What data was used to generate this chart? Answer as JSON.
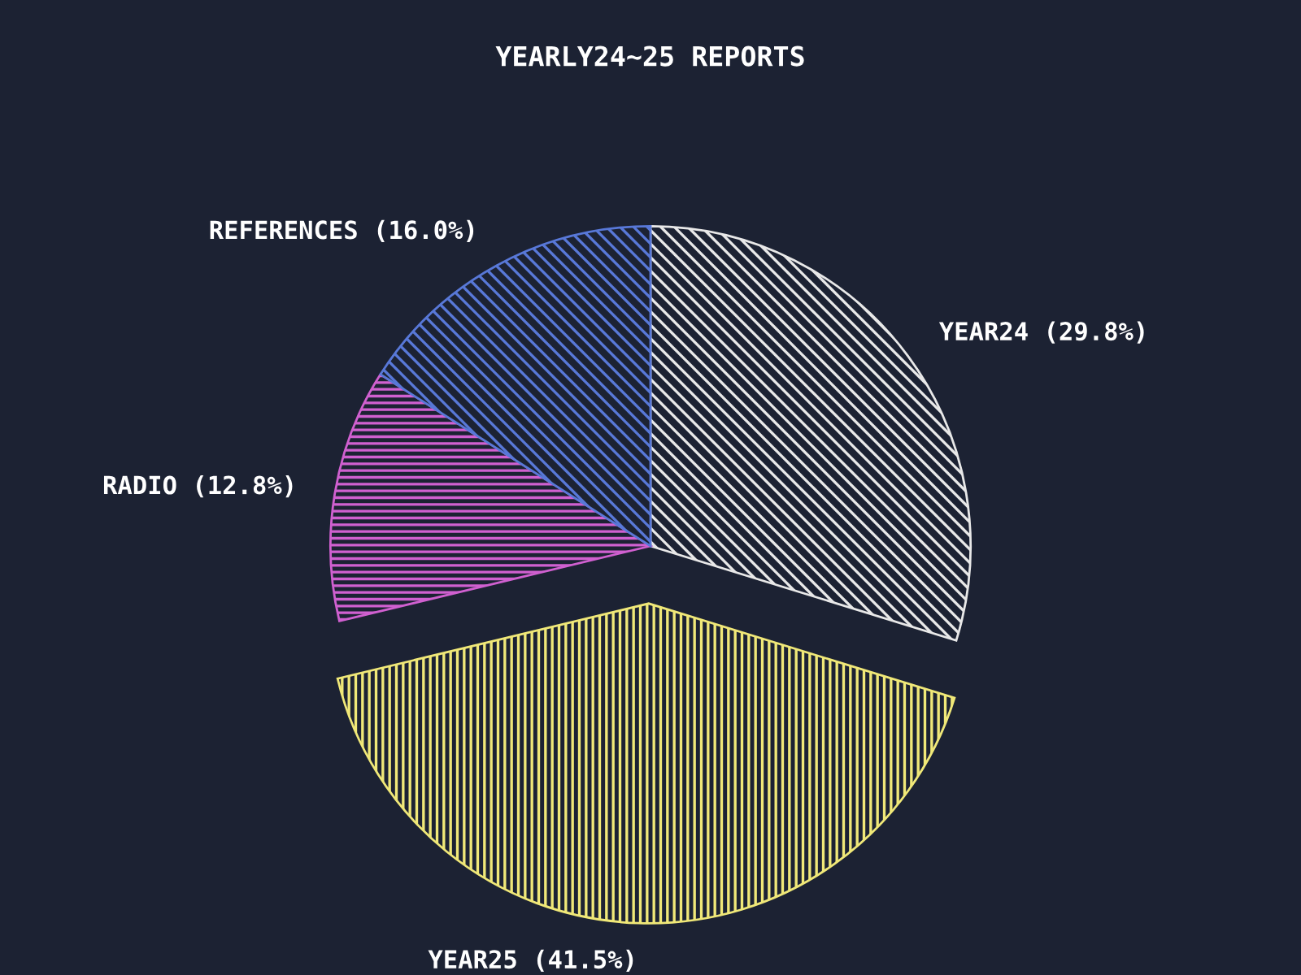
{
  "chart_data": {
    "type": "pie",
    "subtitle": "YEARLY24~25 REPORTS",
    "categories": [
      "YEAR24",
      "YEAR25",
      "RADIO",
      "REFERENCES"
    ],
    "values": [
      29.8,
      41.5,
      12.8,
      16.0
    ],
    "value_labels": [
      "(29.8%)",
      "(41.5%)",
      "(12.8%)",
      "(16.0%)"
    ],
    "colors": [
      "#e8e8e8",
      "#f0e878",
      "#d060d0",
      "#5878d8"
    ],
    "legend": false
  }
}
